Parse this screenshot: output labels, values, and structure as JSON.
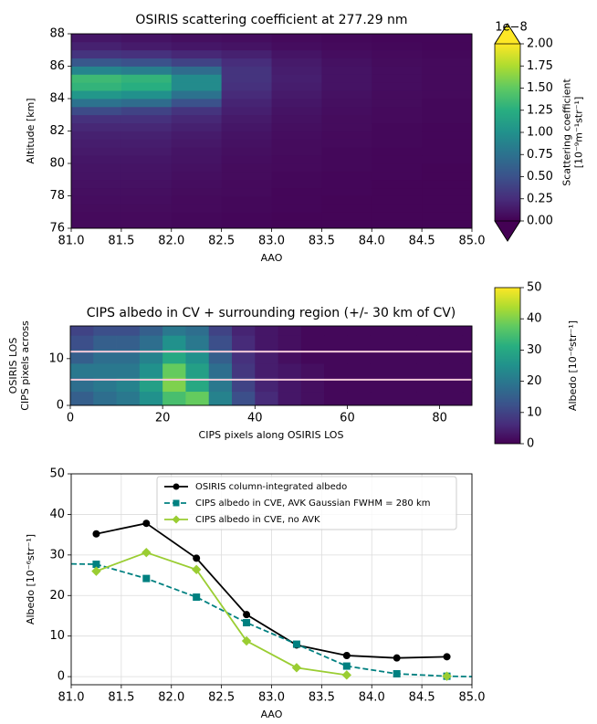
{
  "chart_data": [
    {
      "type": "heatmap",
      "title": "OSIRIS scattering coefficient at 277.29 nm",
      "xlabel": "AAO",
      "ylabel": "Altitude [km]",
      "xlim": [
        81,
        85
      ],
      "ylim": [
        76,
        88
      ],
      "xticks": [
        {
          "value": 81,
          "label": "81.0"
        },
        {
          "value": 81.5,
          "label": "81.5"
        },
        {
          "value": 82,
          "label": "82.0"
        },
        {
          "value": 82.5,
          "label": "82.5"
        },
        {
          "value": 83,
          "label": "83.0"
        },
        {
          "value": 83.5,
          "label": "83.5"
        },
        {
          "value": 84,
          "label": "84.0"
        },
        {
          "value": 84.5,
          "label": "84.5"
        },
        {
          "value": 85,
          "label": "85.0"
        }
      ],
      "yticks": [
        76,
        78,
        80,
        82,
        84,
        86,
        88
      ],
      "x_edges": [
        81,
        81.5,
        82,
        82.5,
        83,
        83.5,
        84,
        84.5,
        85
      ],
      "y_edges": [
        76,
        76.5,
        77,
        77.5,
        78,
        78.5,
        79,
        79.5,
        80,
        80.5,
        81,
        81.5,
        82,
        82.5,
        83,
        83.5,
        84,
        84.5,
        85,
        85.5,
        86,
        86.5,
        87,
        87.5,
        88
      ],
      "z": [
        [
          0.05,
          0.05,
          0.04,
          0.03,
          0.02,
          0.02,
          0.02,
          0.02
        ],
        [
          0.05,
          0.05,
          0.04,
          0.03,
          0.02,
          0.02,
          0.02,
          0.02
        ],
        [
          0.06,
          0.06,
          0.05,
          0.04,
          0.03,
          0.02,
          0.02,
          0.02
        ],
        [
          0.07,
          0.07,
          0.05,
          0.04,
          0.03,
          0.02,
          0.02,
          0.02
        ],
        [
          0.08,
          0.08,
          0.06,
          0.05,
          0.03,
          0.03,
          0.02,
          0.02
        ],
        [
          0.09,
          0.09,
          0.07,
          0.05,
          0.04,
          0.03,
          0.02,
          0.02
        ],
        [
          0.1,
          0.1,
          0.08,
          0.06,
          0.04,
          0.03,
          0.03,
          0.02
        ],
        [
          0.11,
          0.11,
          0.09,
          0.06,
          0.05,
          0.04,
          0.03,
          0.02
        ],
        [
          0.12,
          0.12,
          0.1,
          0.07,
          0.05,
          0.04,
          0.03,
          0.03
        ],
        [
          0.14,
          0.14,
          0.11,
          0.08,
          0.06,
          0.04,
          0.03,
          0.03
        ],
        [
          0.16,
          0.16,
          0.13,
          0.09,
          0.06,
          0.05,
          0.04,
          0.03
        ],
        [
          0.18,
          0.18,
          0.15,
          0.1,
          0.07,
          0.05,
          0.04,
          0.03
        ],
        [
          0.22,
          0.22,
          0.18,
          0.12,
          0.08,
          0.06,
          0.04,
          0.03
        ],
        [
          0.28,
          0.28,
          0.22,
          0.14,
          0.09,
          0.06,
          0.05,
          0.04
        ],
        [
          0.45,
          0.4,
          0.3,
          0.17,
          0.1,
          0.07,
          0.05,
          0.04
        ],
        [
          0.75,
          0.7,
          0.5,
          0.2,
          0.12,
          0.08,
          0.06,
          0.04
        ],
        [
          1.05,
          1.0,
          0.75,
          0.24,
          0.14,
          0.09,
          0.06,
          0.05
        ],
        [
          1.3,
          1.25,
          0.95,
          0.28,
          0.16,
          0.1,
          0.07,
          0.05
        ],
        [
          1.35,
          1.3,
          0.95,
          0.3,
          0.17,
          0.1,
          0.07,
          0.05
        ],
        [
          0.9,
          0.85,
          0.7,
          0.3,
          0.16,
          0.1,
          0.07,
          0.05
        ],
        [
          0.55,
          0.5,
          0.4,
          0.25,
          0.14,
          0.09,
          0.06,
          0.05
        ],
        [
          0.3,
          0.28,
          0.22,
          0.18,
          0.11,
          0.07,
          0.05,
          0.04
        ],
        [
          0.18,
          0.15,
          0.12,
          0.1,
          0.07,
          0.05,
          0.04,
          0.03
        ],
        [
          0.12,
          0.1,
          0.08,
          0.07,
          0.05,
          0.04,
          0.03,
          0.03
        ]
      ],
      "colorbar": {
        "colormap": "viridis",
        "label": [
          "Scattering coefficient",
          "[10⁻⁹m⁻¹str⁻¹]"
        ],
        "offset_text": "1e−8",
        "extend": "both",
        "lim": [
          0,
          2
        ],
        "ticks": [
          {
            "value": 0,
            "label": "0.00"
          },
          {
            "value": 0.25,
            "label": "0.25"
          },
          {
            "value": 0.5,
            "label": "0.50"
          },
          {
            "value": 0.75,
            "label": "0.75"
          },
          {
            "value": 1,
            "label": "1.00"
          },
          {
            "value": 1.25,
            "label": "1.25"
          },
          {
            "value": 1.5,
            "label": "1.50"
          },
          {
            "value": 1.75,
            "label": "1.75"
          },
          {
            "value": 2,
            "label": "2.00"
          }
        ]
      }
    },
    {
      "type": "heatmap",
      "title": "CIPS albedo in CV + surrounding region (+/- 30 km of CV)",
      "xlabel": "CIPS pixels along OSIRIS LOS",
      "ylabel": [
        "CIPS pixels across",
        "OSIRIS LOS"
      ],
      "xlim": [
        0,
        87
      ],
      "ylim": [
        0,
        17
      ],
      "xticks": [
        0,
        20,
        40,
        60,
        80
      ],
      "yticks": [
        0,
        10
      ],
      "x_edges": [
        0,
        5,
        10,
        15,
        20,
        25,
        30,
        35,
        40,
        45,
        50,
        55,
        60,
        65,
        70,
        75,
        80,
        85,
        87
      ],
      "y_edges": [
        0,
        3,
        6,
        9,
        12,
        15,
        17
      ],
      "z": [
        [
          15,
          18,
          20,
          25,
          35,
          38,
          22,
          12,
          6,
          3,
          2,
          1,
          1,
          1,
          1,
          1,
          1,
          1
        ],
        [
          18,
          20,
          22,
          28,
          40,
          30,
          20,
          10,
          5,
          3,
          2,
          1,
          1,
          1,
          1,
          1,
          1,
          1
        ],
        [
          20,
          20,
          20,
          25,
          38,
          28,
          18,
          8,
          4,
          3,
          2,
          1,
          1,
          1,
          1,
          1,
          1,
          1
        ],
        [
          15,
          18,
          18,
          22,
          30,
          25,
          15,
          7,
          4,
          2,
          1,
          1,
          1,
          1,
          1,
          1,
          1,
          1
        ],
        [
          12,
          15,
          15,
          18,
          25,
          20,
          12,
          6,
          3,
          2,
          1,
          1,
          1,
          1,
          1,
          1,
          1,
          1
        ],
        [
          10,
          12,
          12,
          15,
          20,
          18,
          10,
          5,
          3,
          2,
          1,
          1,
          1,
          1,
          1,
          1,
          1,
          1
        ]
      ],
      "hlines": [
        5.5,
        11.5
      ],
      "hline_color": "#f2c9d9",
      "colorbar": {
        "colormap": "viridis",
        "label": [
          "Albedo [10⁻⁶str⁻¹]"
        ],
        "lim": [
          0,
          50
        ],
        "ticks": [
          0,
          10,
          20,
          30,
          40,
          50
        ]
      }
    },
    {
      "type": "line",
      "xlabel": "AAO",
      "ylabel": "Albedo [10⁻⁶str⁻¹]",
      "grid": true,
      "legend": "upper center",
      "xlim": [
        81,
        85
      ],
      "ylim": [
        -2,
        50
      ],
      "xticks": [
        {
          "value": 81,
          "label": "81.0"
        },
        {
          "value": 81.5,
          "label": "81.5"
        },
        {
          "value": 82,
          "label": "82.0"
        },
        {
          "value": 82.5,
          "label": "82.5"
        },
        {
          "value": 83,
          "label": "83.0"
        },
        {
          "value": 83.5,
          "label": "83.5"
        },
        {
          "value": 84,
          "label": "84.0"
        },
        {
          "value": 84.5,
          "label": "84.5"
        },
        {
          "value": 85,
          "label": "85.0"
        }
      ],
      "yticks": [
        0,
        10,
        20,
        30,
        40,
        50
      ],
      "series": [
        {
          "name": "OSIRIS column-integrated albedo",
          "color": "#000000",
          "marker": "o",
          "dash": false,
          "x": [
            81.25,
            81.75,
            82.25,
            82.75,
            83.25,
            83.75,
            84.25,
            84.75
          ],
          "values": [
            35.2,
            37.8,
            29.2,
            15.3,
            7.8,
            5.2,
            4.6,
            4.9
          ]
        },
        {
          "name": "CIPS albedo in CVE, AVK Gaussian FWHM = 280 km",
          "color": "#008080",
          "marker": "s",
          "dash": true,
          "x": [
            81.25,
            81.75,
            82.25,
            82.75,
            83.25,
            83.75,
            84.25,
            84.75
          ],
          "values": [
            27.7,
            24.2,
            19.6,
            13.3,
            8.0,
            2.6,
            0.7,
            0.1
          ],
          "line_x": [
            81.0,
            85.0
          ],
          "line_values": [
            27.8,
            0.0
          ]
        },
        {
          "name": "CIPS albedo in CVE, no AVK",
          "color": "#9acd32",
          "marker": "D",
          "dash": false,
          "x": [
            81.25,
            81.75,
            82.25,
            82.75,
            83.25,
            83.75,
            84.25,
            84.75
          ],
          "values": [
            26.0,
            30.6,
            26.4,
            8.8,
            2.2,
            0.4,
            null,
            0.1
          ]
        }
      ]
    }
  ]
}
